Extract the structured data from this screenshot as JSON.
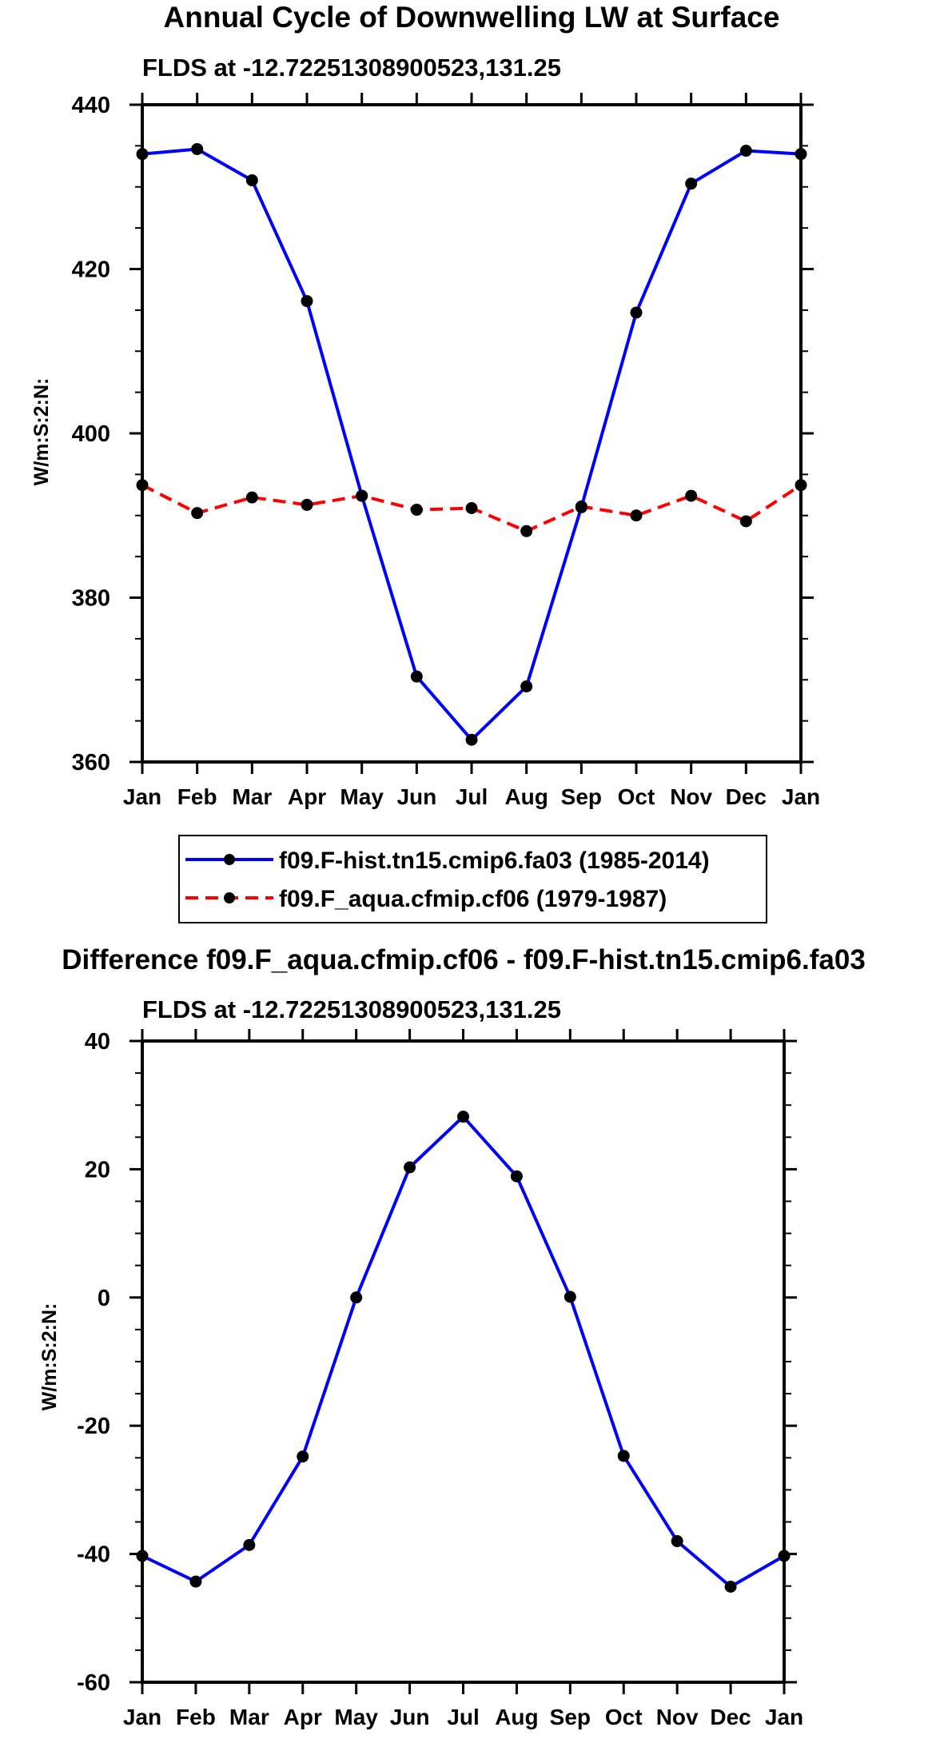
{
  "chart_data": [
    {
      "type": "line",
      "title": "Annual Cycle of Downwelling LW at Surface",
      "subtitle": "FLDS at -12.72251308900523,131.25",
      "xlabel": "",
      "ylabel": "W/m:S:2:N:",
      "categories": [
        "Jan",
        "Feb",
        "Mar",
        "Apr",
        "May",
        "Jun",
        "Jul",
        "Aug",
        "Sep",
        "Oct",
        "Nov",
        "Dec",
        "Jan"
      ],
      "ylim": [
        360,
        440
      ],
      "yticks": [
        360,
        380,
        400,
        420,
        440
      ],
      "series": [
        {
          "name": "f09.F-hist.tn15.cmip6.fa03 (1985-2014)",
          "color": "#0000ff",
          "dash": "solid",
          "values": [
            434.0,
            434.6,
            430.8,
            416.1,
            392.4,
            370.4,
            362.7,
            369.2,
            391.0,
            414.7,
            430.4,
            434.4,
            434.0
          ]
        },
        {
          "name": "f09.F_aqua.cfmip.cf06 (1979-1987)",
          "color": "#ff0000",
          "dash": "dashed",
          "values": [
            393.7,
            390.3,
            392.2,
            391.3,
            392.4,
            390.7,
            390.9,
            388.1,
            391.1,
            390.0,
            392.4,
            389.3,
            393.7
          ]
        }
      ],
      "legend_position": "below"
    },
    {
      "type": "line",
      "title": "Difference f09.F_aqua.cfmip.cf06 - f09.F-hist.tn15.cmip6.fa03",
      "subtitle": "FLDS at -12.72251308900523,131.25",
      "xlabel": "",
      "ylabel": "W/m:S:2:N:",
      "categories": [
        "Jan",
        "Feb",
        "Mar",
        "Apr",
        "May",
        "Jun",
        "Jul",
        "Aug",
        "Sep",
        "Oct",
        "Nov",
        "Dec",
        "Jan"
      ],
      "ylim": [
        -60,
        40
      ],
      "yticks": [
        -60,
        -40,
        -20,
        0,
        20,
        40
      ],
      "series": [
        {
          "name": "difference",
          "color": "#0000ff",
          "dash": "solid",
          "values": [
            -40.3,
            -44.3,
            -38.6,
            -24.8,
            0.0,
            20.3,
            28.2,
            18.9,
            0.1,
            -24.7,
            -38.0,
            -45.1,
            -40.3
          ]
        }
      ]
    }
  ]
}
